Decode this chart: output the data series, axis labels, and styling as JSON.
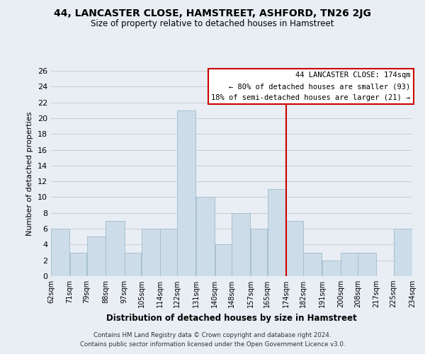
{
  "title": "44, LANCASTER CLOSE, HAMSTREET, ASHFORD, TN26 2JG",
  "subtitle": "Size of property relative to detached houses in Hamstreet",
  "xlabel": "Distribution of detached houses by size in Hamstreet",
  "ylabel": "Number of detached properties",
  "bar_edges": [
    62,
    71,
    79,
    88,
    97,
    105,
    114,
    122,
    131,
    140,
    148,
    157,
    165,
    174,
    182,
    191,
    200,
    208,
    217,
    225,
    234
  ],
  "bar_heights": [
    6,
    3,
    5,
    7,
    3,
    6,
    6,
    21,
    10,
    4,
    8,
    6,
    11,
    7,
    3,
    2,
    3,
    3,
    0,
    6
  ],
  "bar_color": "#ccdce8",
  "bar_edge_color": "#a8c0d0",
  "redline_x": 174,
  "redline_color": "#cc0000",
  "ylim": [
    0,
    26
  ],
  "yticks": [
    0,
    2,
    4,
    6,
    8,
    10,
    12,
    14,
    16,
    18,
    20,
    22,
    24,
    26
  ],
  "grid_color": "#cccccc",
  "background_color": "#e8eef4",
  "annotation_title": "44 LANCASTER CLOSE: 174sqm",
  "annotation_line1": "← 80% of detached houses are smaller (93)",
  "annotation_line2": "18% of semi-detached houses are larger (21) →",
  "annotation_box_color": "#ffffff",
  "annotation_border_color": "#cc0000",
  "footer_line1": "Contains HM Land Registry data © Crown copyright and database right 2024.",
  "footer_line2": "Contains public sector information licensed under the Open Government Licence v3.0.",
  "x_tick_labels": [
    "62sqm",
    "71sqm",
    "79sqm",
    "88sqm",
    "97sqm",
    "105sqm",
    "114sqm",
    "122sqm",
    "131sqm",
    "140sqm",
    "148sqm",
    "157sqm",
    "165sqm",
    "174sqm",
    "182sqm",
    "191sqm",
    "200sqm",
    "208sqm",
    "217sqm",
    "225sqm",
    "234sqm"
  ]
}
